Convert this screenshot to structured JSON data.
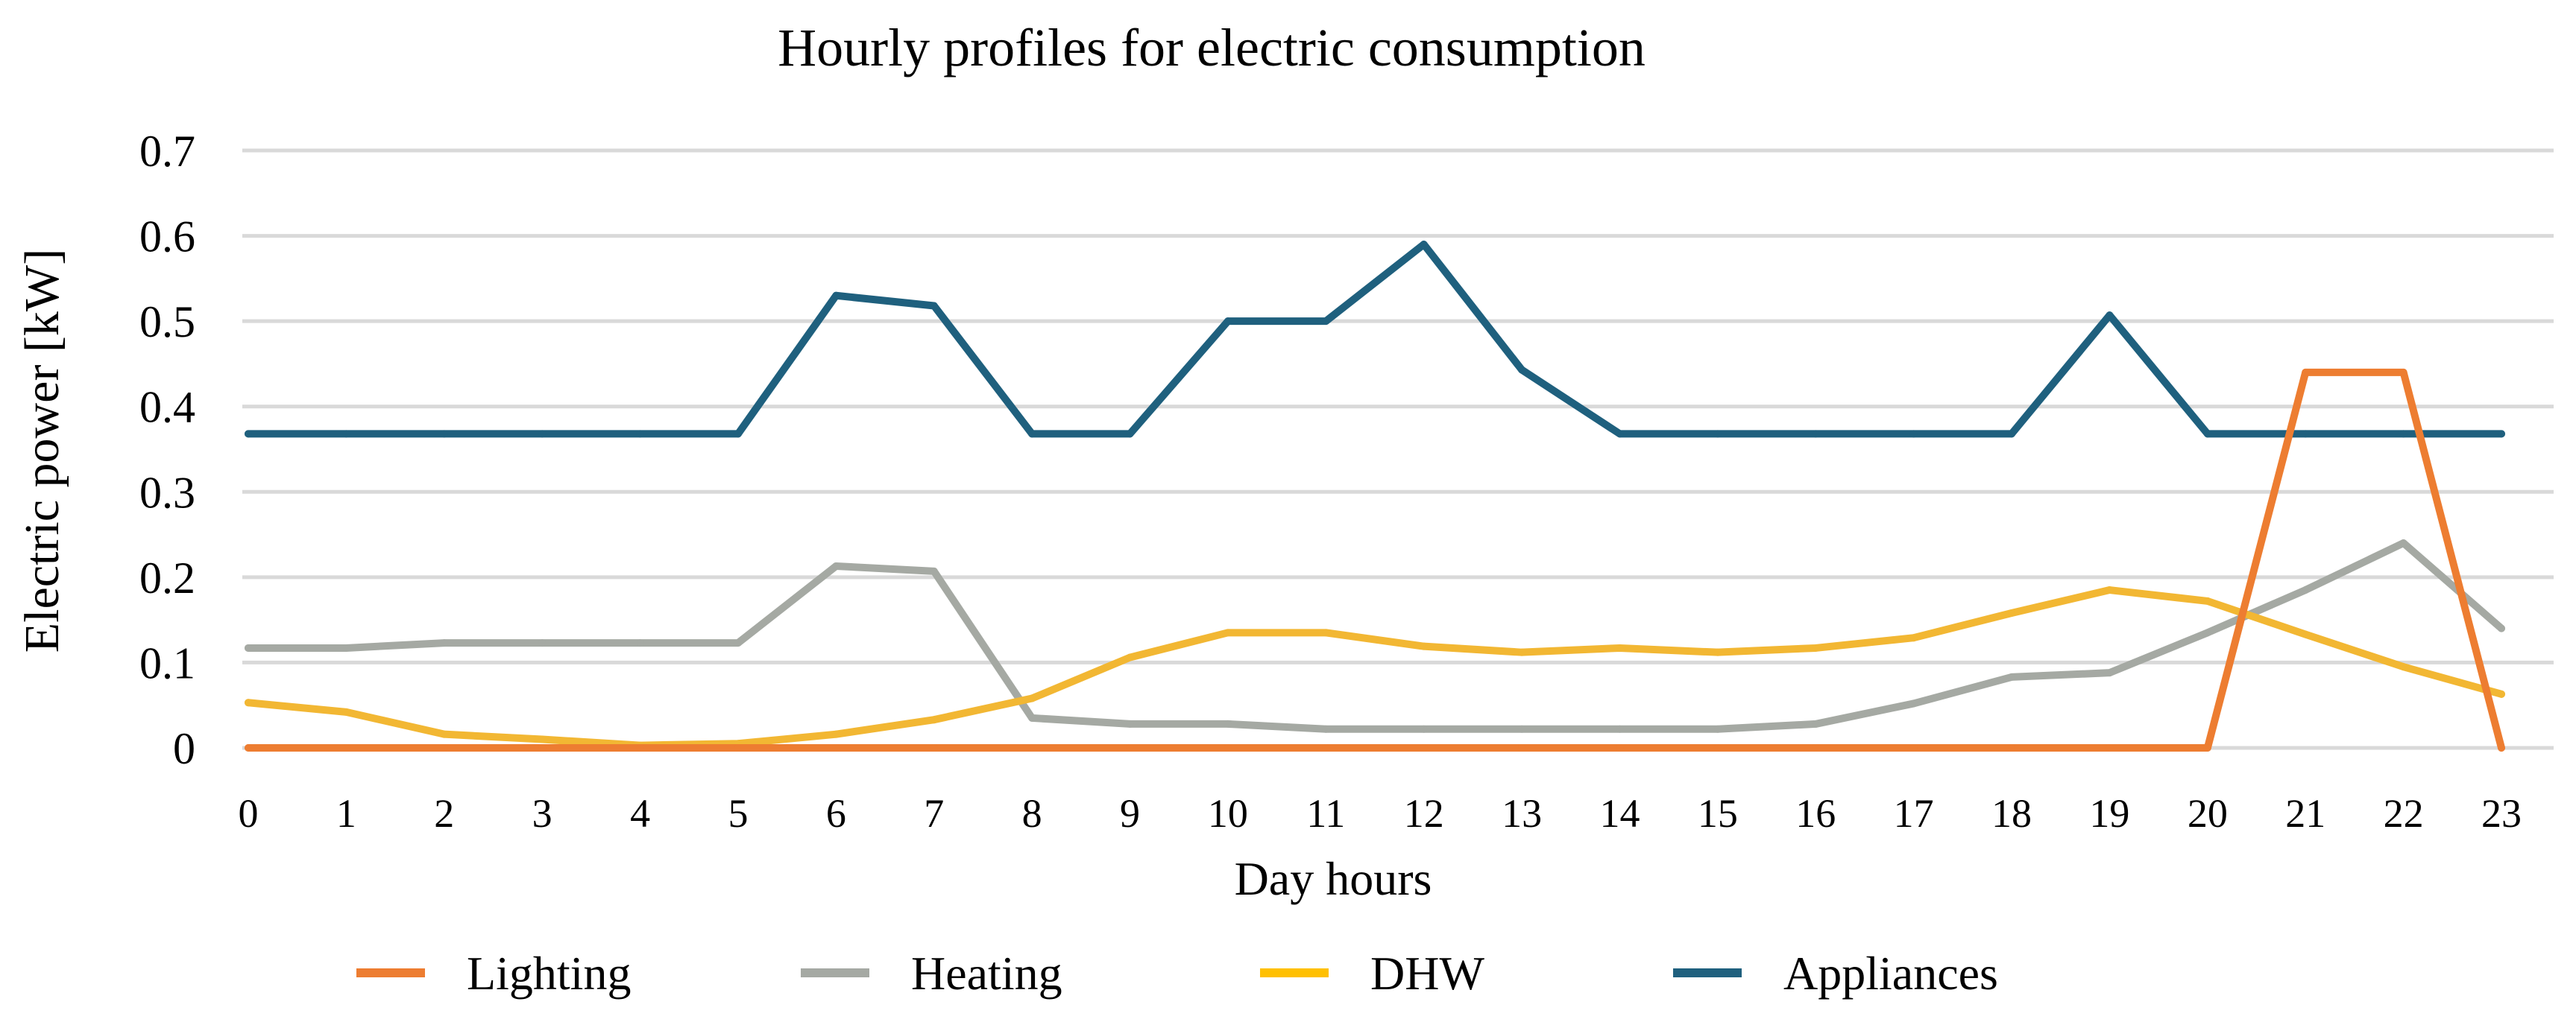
{
  "chart_data": {
    "type": "line",
    "title": "Hourly profiles for electric consumption",
    "xlabel": "Day hours",
    "ylabel": "Electric  power [kW]",
    "ylim": [
      0,
      0.7
    ],
    "yticks": [
      "0",
      "0.1",
      "0.2",
      "0.3",
      "0.4",
      "0.5",
      "0.6",
      "0.7"
    ],
    "grid": "horizontal",
    "legend": "bottom",
    "categories": [
      "0",
      "1",
      "2",
      "3",
      "4",
      "5",
      "6",
      "7",
      "8",
      "9",
      "10",
      "11",
      "12",
      "13",
      "14",
      "15",
      "16",
      "17",
      "18",
      "19",
      "20",
      "21",
      "22",
      "23"
    ],
    "series": [
      {
        "name": "Lighting",
        "color": "#ED7D31",
        "values": [
          0,
          0,
          0,
          0,
          0,
          0,
          0,
          0,
          0,
          0,
          0,
          0,
          0,
          0,
          0,
          0,
          0,
          0,
          0,
          0,
          0,
          0.44,
          0.44,
          0
        ]
      },
      {
        "name": "Heating",
        "color": "#A5A9A3",
        "values": [
          0.117,
          0.117,
          0.123,
          0.123,
          0.123,
          0.123,
          0.213,
          0.207,
          0.035,
          0.028,
          0.028,
          0.022,
          0.022,
          0.022,
          0.022,
          0.022,
          0.028,
          0.052,
          0.083,
          0.088,
          0.135,
          0.185,
          0.24,
          0.14
        ]
      },
      {
        "name": "DHW",
        "color": "#F2B733",
        "values": [
          0.053,
          0.042,
          0.016,
          0.01,
          0.003,
          0.005,
          0.016,
          0.033,
          0.058,
          0.106,
          0.135,
          0.135,
          0.119,
          0.112,
          0.117,
          0.112,
          0.117,
          0.129,
          0.158,
          0.185,
          0.172,
          0.133,
          0.095,
          0.063
        ]
      },
      {
        "name": "Appliances",
        "color": "#1F607E",
        "values": [
          0.368,
          0.368,
          0.368,
          0.368,
          0.368,
          0.368,
          0.53,
          0.518,
          0.368,
          0.368,
          0.5,
          0.5,
          0.59,
          0.443,
          0.368,
          0.368,
          0.368,
          0.368,
          0.368,
          0.507,
          0.368,
          0.368,
          0.368,
          0.368
        ]
      }
    ]
  }
}
